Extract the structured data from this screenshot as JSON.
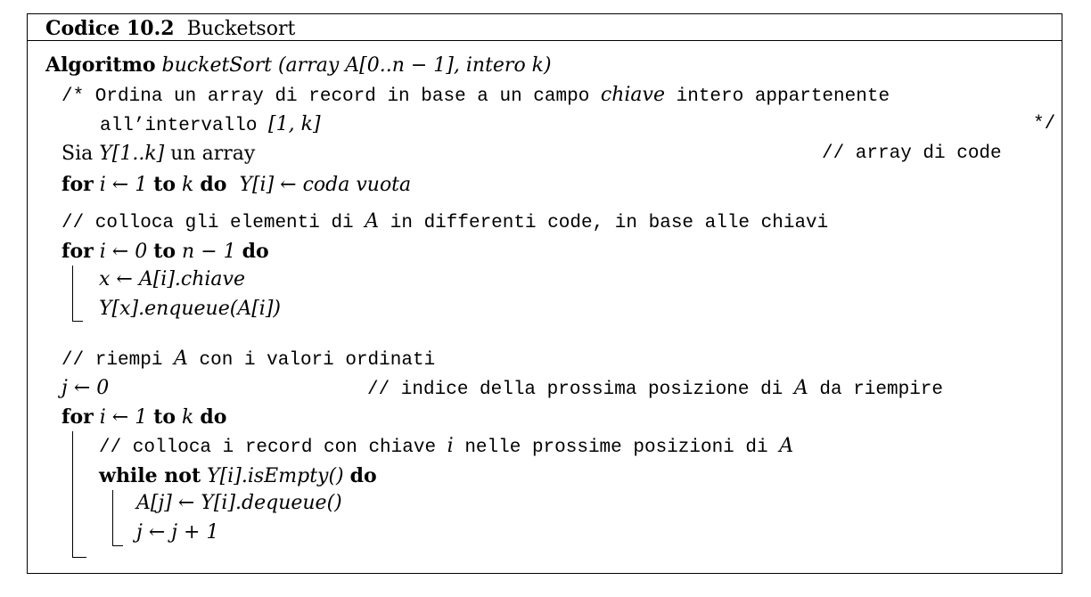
{
  "header": {
    "code_label": "Codice 10.2",
    "code_title": "Bucketsort"
  },
  "algorithm": {
    "keyword": "Algoritmo",
    "signature": "bucketSort (array A[0..n − 1], intero k)"
  },
  "lines": {
    "comment_block_1": "/* Ordina un array di record in base a un campo",
    "chiave_word": "chiave",
    "comment_block_1b": "intero appartenente",
    "comment_block_2": "all’intervallo",
    "interval": "[1, k]",
    "comment_end": "*/",
    "sia": "Sia",
    "sia_expr": "Y[1..k]",
    "sia_rest": "un array",
    "sia_comment": "// array di code",
    "for1_for": "for",
    "for1_expr": "i ← 1",
    "for1_to": "to",
    "for1_k": "k",
    "for1_do": "do",
    "for1_body": "Y[i] ← coda vuota",
    "c_colloca_a": "// colloca gli elementi di",
    "c_colloca_var": "A",
    "c_colloca_b": "in differenti code, in base alle chiavi",
    "for2_for": "for",
    "for2_expr": "i ← 0",
    "for2_to": "to",
    "for2_end": "n − 1",
    "for2_do": "do",
    "for2_body1": "x ← A[i].chiave",
    "for2_body2": "Y[x].enqueue(A[i])",
    "c_riempi_a": "// riempi",
    "c_riempi_var": "A",
    "c_riempi_b": "con i valori ordinati",
    "j_init": "j ← 0",
    "j_comment_a": "// indice della prossima posizione di",
    "j_comment_var": "A",
    "j_comment_b": "da riempire",
    "for3_for": "for",
    "for3_expr": "i ← 1",
    "for3_to": "to",
    "for3_k": "k",
    "for3_do": "do",
    "c_record_a": "// colloca i record con chiave",
    "c_record_var": "i",
    "c_record_b": "nelle prossime posizioni di",
    "c_record_var2": "A",
    "while_kw": "while not",
    "while_expr": "Y[i].isEmpty()",
    "while_do": "do",
    "while_body1": "A[j] ← Y[i].dequeue()",
    "while_body2": "j ← j + 1"
  }
}
